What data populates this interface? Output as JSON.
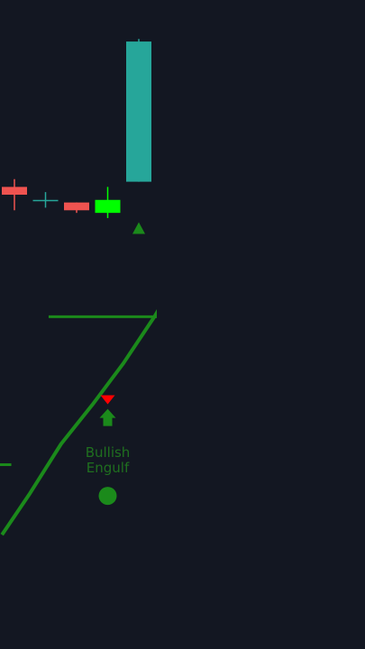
{
  "chart_data": {
    "type": "candlestick",
    "background": "#131722",
    "colors": {
      "bull_candle": "#26a69a",
      "bull_engulf_candle": "#00ff00",
      "bear_candle": "#ef5350",
      "indicator_line": "#1b8a1b",
      "level_line": "#1b8a1b",
      "signal_up_marker": "#1b8a1b",
      "signal_down_marker": "#ff0000",
      "annotation_text": "#1f6f1f"
    },
    "price_range": [
      97,
      122
    ],
    "candles": [
      {
        "index": 0,
        "open": 114.8,
        "high": 115.1,
        "low": 113.9,
        "close": 114.5
      },
      {
        "index": 1,
        "open": 114.3,
        "high": 114.6,
        "low": 114.0,
        "close": 114.3
      },
      {
        "index": 2,
        "open": 114.2,
        "high": 114.2,
        "low": 113.8,
        "close": 113.9
      },
      {
        "index": 3,
        "open": 113.8,
        "high": 114.8,
        "low": 113.6,
        "close": 114.3
      },
      {
        "index": 4,
        "open": 115.0,
        "high": 120.5,
        "low": 115.0,
        "close": 120.4
      }
    ],
    "indicator_line": [
      {
        "x": -0.4,
        "y": 101.4
      },
      {
        "x": 0.5,
        "y": 103.0
      },
      {
        "x": 1.5,
        "y": 104.9
      },
      {
        "x": 2.5,
        "y": 106.4
      },
      {
        "x": 3.5,
        "y": 108.0
      },
      {
        "x": 4.5,
        "y": 109.8
      },
      {
        "x": 5.0,
        "y": 110.8
      }
    ],
    "level_lines": [
      {
        "y": 109.8,
        "x_start": 1.1,
        "x_end": 5.0
      },
      {
        "y": 104.1,
        "x_start": -0.5,
        "x_end": -0.1
      }
    ],
    "markers": [
      {
        "kind": "triangle-up",
        "x": 4.0,
        "y": 113.2
      },
      {
        "kind": "arrow-down",
        "x": 3.0,
        "y": 106.6
      },
      {
        "kind": "arrow-up",
        "x": 3.0,
        "y": 105.9
      },
      {
        "kind": "circle",
        "x": 3.0,
        "y": 102.9
      }
    ],
    "annotations": [
      {
        "text_lines": [
          "Bullish",
          "Engulf"
        ],
        "x": 3.0,
        "y": 104.4
      }
    ]
  }
}
